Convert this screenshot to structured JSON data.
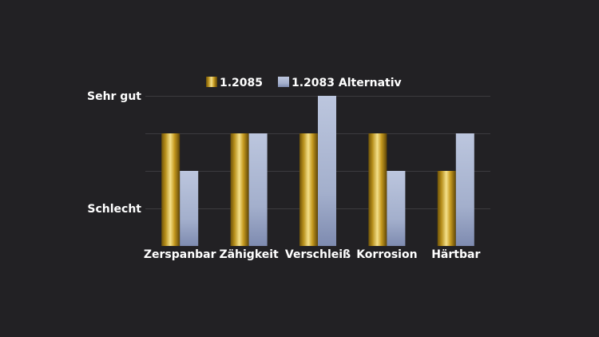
{
  "chart_data": {
    "type": "bar",
    "title": "",
    "xlabel": "",
    "ylabel": "",
    "categories": [
      "Zerspanbar",
      "Zähigkeit",
      "Verschleiß",
      "Korrosion",
      "Härtbar"
    ],
    "series": [
      {
        "name": "1.2085",
        "values": [
          3,
          3,
          3,
          3,
          2
        ],
        "color": "#c9a227"
      },
      {
        "name": "1.2083  Alternativ",
        "values": [
          2,
          3,
          4,
          2,
          3
        ],
        "color": "#a9b4d0"
      }
    ],
    "ylim": [
      0,
      4
    ],
    "y_ticks": [
      {
        "value": 1,
        "label": "Schlecht"
      },
      {
        "value": 4,
        "label": "Sehr gut"
      }
    ],
    "grid": true,
    "legend_position": "top"
  }
}
